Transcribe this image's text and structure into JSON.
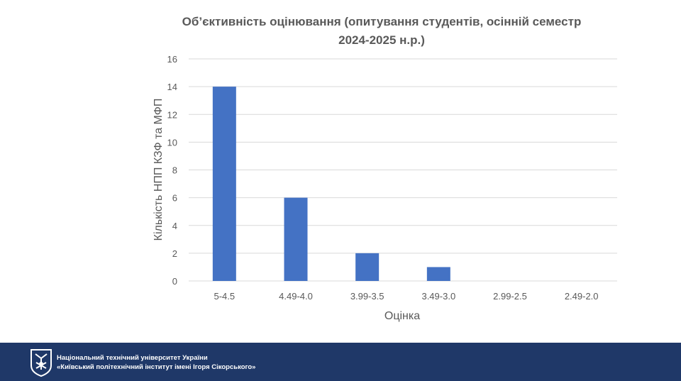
{
  "chart_data": {
    "type": "bar",
    "title_line1": "Об’єктивність оцінювання (опитування студентів, осінній семестр",
    "title_line2": "2024-2025 н.р.)",
    "xlabel": "Оцінка",
    "ylabel": "Кількість НПП КЗФ та МФП",
    "categories": [
      "5-4.5",
      "4.49-4.0",
      "3.99-3.5",
      "3.49-3.0",
      "2.99-2.5",
      "2.49-2.0"
    ],
    "values": [
      14,
      6,
      2,
      1,
      0,
      0
    ],
    "ylim": [
      0,
      16
    ],
    "yticks": [
      0,
      2,
      4,
      6,
      8,
      10,
      12,
      14,
      16
    ],
    "grid": true,
    "bar_color": "#4472c4",
    "grid_color": "#d9d9d9",
    "text_color": "#595959"
  },
  "footer": {
    "line1": "Національний технічний університет України",
    "line2": "«Київський політехнічний інститут імені Ігоря Сікорського»",
    "background_color": "#1f3868",
    "logo_icon": "kpi-logo-icon"
  }
}
